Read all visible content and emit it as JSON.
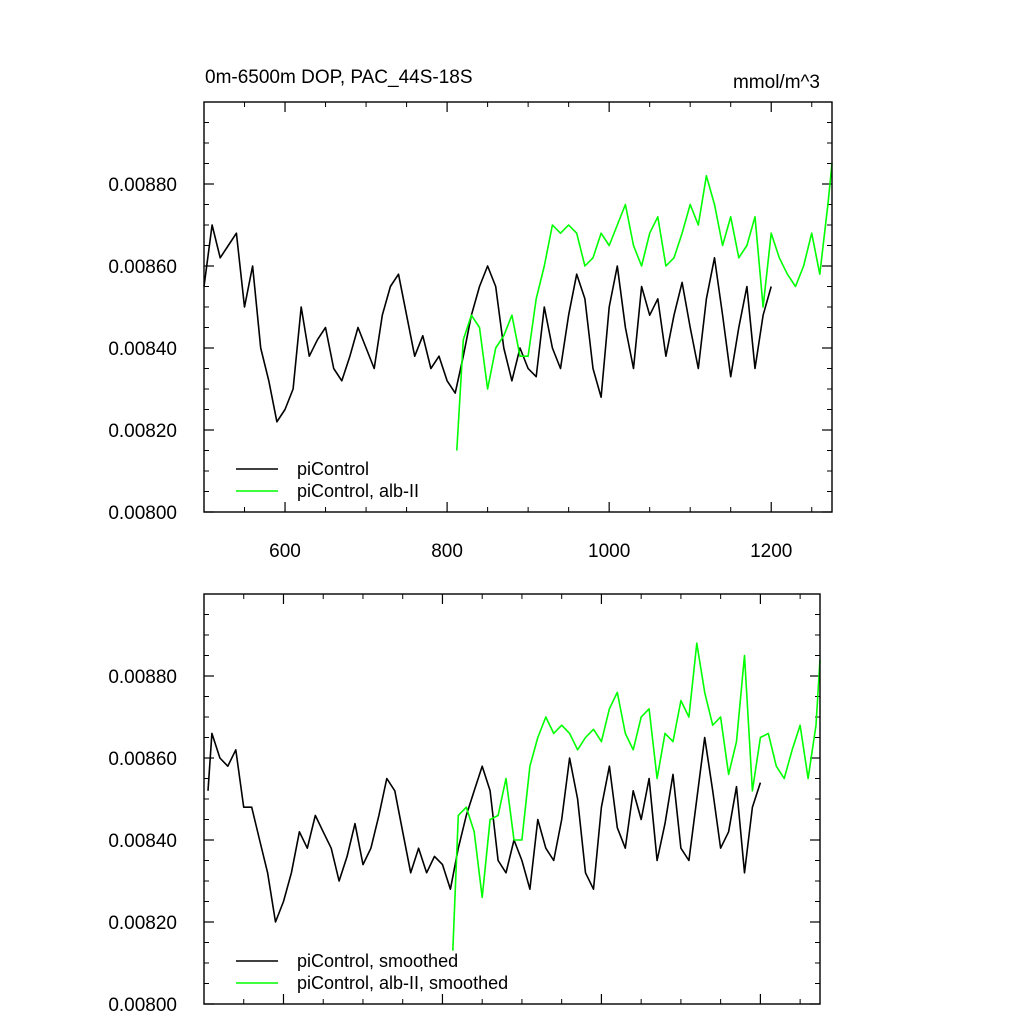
{
  "chart_data": [
    {
      "type": "line",
      "title": "0m-6500m DOP, PAC_44S-18S",
      "units": "mmol/m^3",
      "xlabel": "",
      "ylabel": "",
      "xlim": [
        500,
        1275
      ],
      "ylim": [
        0.008,
        0.009
      ],
      "xticks": [
        600,
        800,
        1000,
        1200
      ],
      "xtick_labels": [
        "600",
        "800",
        "1000",
        "1200"
      ],
      "yticks": [
        0.008,
        0.0082,
        0.0084,
        0.0086,
        0.0088
      ],
      "ytick_labels": [
        "0.00800",
        "0.00820",
        "0.00840",
        "0.00860",
        "0.00880"
      ],
      "legend_position": "bottom-left",
      "series": [
        {
          "name": "piControl",
          "color": "#000000",
          "x": [
            500,
            510,
            520,
            530,
            540,
            550,
            560,
            570,
            580,
            590,
            600,
            610,
            620,
            630,
            640,
            650,
            660,
            670,
            680,
            690,
            700,
            710,
            720,
            730,
            740,
            750,
            760,
            770,
            780,
            790,
            800,
            810,
            820,
            830,
            840,
            850,
            860,
            870,
            880,
            890,
            900,
            910,
            920,
            930,
            940,
            950,
            960,
            970,
            980,
            990,
            1000,
            1010,
            1020,
            1030,
            1040,
            1050,
            1060,
            1070,
            1080,
            1090,
            1100,
            1110,
            1120,
            1130,
            1140,
            1150,
            1160,
            1170,
            1180,
            1190,
            1200
          ],
          "values": [
            0.00855,
            0.0087,
            0.00862,
            0.00865,
            0.00868,
            0.0085,
            0.0086,
            0.0084,
            0.00832,
            0.00822,
            0.00825,
            0.0083,
            0.0085,
            0.00838,
            0.00842,
            0.00845,
            0.00835,
            0.00832,
            0.00838,
            0.00845,
            0.0084,
            0.00835,
            0.00848,
            0.00855,
            0.00858,
            0.00848,
            0.00838,
            0.00843,
            0.00835,
            0.00838,
            0.00832,
            0.00829,
            0.00838,
            0.00848,
            0.00855,
            0.0086,
            0.00855,
            0.0084,
            0.00832,
            0.0084,
            0.00835,
            0.00833,
            0.0085,
            0.0084,
            0.00835,
            0.00848,
            0.00858,
            0.00852,
            0.00835,
            0.00828,
            0.0085,
            0.0086,
            0.00845,
            0.00835,
            0.00855,
            0.00848,
            0.00852,
            0.00838,
            0.00848,
            0.00856,
            0.00845,
            0.00835,
            0.00852,
            0.00862,
            0.00848,
            0.00833,
            0.00845,
            0.00855,
            0.00835,
            0.00848,
            0.00855
          ]
        },
        {
          "name": "piControl, alb-II",
          "color": "#00ff00",
          "x": [
            812,
            820,
            830,
            840,
            850,
            860,
            870,
            880,
            890,
            900,
            910,
            920,
            930,
            940,
            950,
            960,
            970,
            980,
            990,
            1000,
            1010,
            1020,
            1030,
            1040,
            1050,
            1060,
            1070,
            1080,
            1090,
            1100,
            1110,
            1120,
            1130,
            1140,
            1150,
            1160,
            1170,
            1180,
            1190,
            1200,
            1210,
            1220,
            1230,
            1240,
            1250,
            1260,
            1270,
            1275
          ],
          "values": [
            0.00815,
            0.00842,
            0.00848,
            0.00845,
            0.0083,
            0.0084,
            0.00843,
            0.00848,
            0.00838,
            0.00838,
            0.00852,
            0.0086,
            0.0087,
            0.00868,
            0.0087,
            0.00868,
            0.0086,
            0.00862,
            0.00868,
            0.00865,
            0.0087,
            0.00875,
            0.00865,
            0.0086,
            0.00868,
            0.00872,
            0.0086,
            0.00862,
            0.00868,
            0.00875,
            0.0087,
            0.00882,
            0.00875,
            0.00865,
            0.00872,
            0.00862,
            0.00865,
            0.00872,
            0.0085,
            0.00868,
            0.00862,
            0.00858,
            0.00855,
            0.0086,
            0.00868,
            0.00858,
            0.00875,
            0.00885
          ]
        }
      ]
    },
    {
      "type": "line",
      "title": "",
      "xlabel": "",
      "ylabel": "",
      "xlim": [
        500,
        1275
      ],
      "ylim": [
        0.008,
        0.009
      ],
      "xticks": [
        600,
        800,
        1000,
        1200
      ],
      "yticks": [
        0.008,
        0.0082,
        0.0084,
        0.0086,
        0.0088
      ],
      "ytick_labels": [
        "0.00800",
        "0.00820",
        "0.00840",
        "0.00860",
        "0.00880"
      ],
      "legend_position": "bottom-left",
      "series": [
        {
          "name": "piControl, smoothed",
          "color": "#000000",
          "x": [
            505,
            510,
            520,
            530,
            540,
            550,
            560,
            570,
            580,
            590,
            600,
            610,
            620,
            630,
            640,
            650,
            660,
            670,
            680,
            690,
            700,
            710,
            720,
            730,
            740,
            750,
            760,
            770,
            780,
            790,
            800,
            810,
            820,
            830,
            840,
            850,
            860,
            870,
            880,
            890,
            900,
            910,
            920,
            930,
            940,
            950,
            960,
            970,
            980,
            990,
            1000,
            1010,
            1020,
            1030,
            1040,
            1050,
            1060,
            1070,
            1080,
            1090,
            1100,
            1110,
            1120,
            1130,
            1140,
            1150,
            1160,
            1170,
            1180,
            1190,
            1200
          ],
          "values": [
            0.00852,
            0.00866,
            0.0086,
            0.00858,
            0.00862,
            0.00848,
            0.00848,
            0.0084,
            0.00832,
            0.0082,
            0.00825,
            0.00832,
            0.00842,
            0.00838,
            0.00846,
            0.00842,
            0.00838,
            0.0083,
            0.00836,
            0.00844,
            0.00834,
            0.00838,
            0.00846,
            0.00855,
            0.00852,
            0.00842,
            0.00832,
            0.00838,
            0.00832,
            0.00836,
            0.00834,
            0.00828,
            0.00838,
            0.00846,
            0.00852,
            0.00858,
            0.00852,
            0.00835,
            0.00832,
            0.0084,
            0.00835,
            0.00828,
            0.00845,
            0.00838,
            0.00835,
            0.00845,
            0.0086,
            0.0085,
            0.00832,
            0.00828,
            0.00848,
            0.00858,
            0.00843,
            0.00838,
            0.00852,
            0.00845,
            0.00855,
            0.00835,
            0.00844,
            0.00856,
            0.00838,
            0.00835,
            0.0085,
            0.00865,
            0.00852,
            0.00838,
            0.00842,
            0.00853,
            0.00832,
            0.00848,
            0.00854
          ]
        },
        {
          "name": "piControl, alb-II, smoothed",
          "color": "#00ff00",
          "x": [
            813,
            820,
            830,
            840,
            850,
            860,
            870,
            880,
            890,
            900,
            910,
            920,
            930,
            940,
            950,
            960,
            970,
            980,
            990,
            1000,
            1010,
            1020,
            1030,
            1040,
            1050,
            1060,
            1070,
            1080,
            1090,
            1100,
            1110,
            1120,
            1130,
            1140,
            1150,
            1160,
            1170,
            1180,
            1190,
            1200,
            1210,
            1220,
            1230,
            1240,
            1250,
            1260,
            1270,
            1275
          ],
          "values": [
            0.00813,
            0.00846,
            0.00848,
            0.00842,
            0.00826,
            0.00845,
            0.00846,
            0.00855,
            0.0084,
            0.0084,
            0.00858,
            0.00865,
            0.0087,
            0.00866,
            0.00868,
            0.00866,
            0.00862,
            0.00865,
            0.00867,
            0.00864,
            0.00872,
            0.00876,
            0.00866,
            0.00862,
            0.0087,
            0.00872,
            0.00855,
            0.00866,
            0.00864,
            0.00874,
            0.0087,
            0.00888,
            0.00876,
            0.00868,
            0.0087,
            0.00856,
            0.00864,
            0.00885,
            0.00852,
            0.00865,
            0.00866,
            0.00858,
            0.00855,
            0.00862,
            0.00868,
            0.00855,
            0.00868,
            0.00884
          ]
        }
      ]
    }
  ]
}
